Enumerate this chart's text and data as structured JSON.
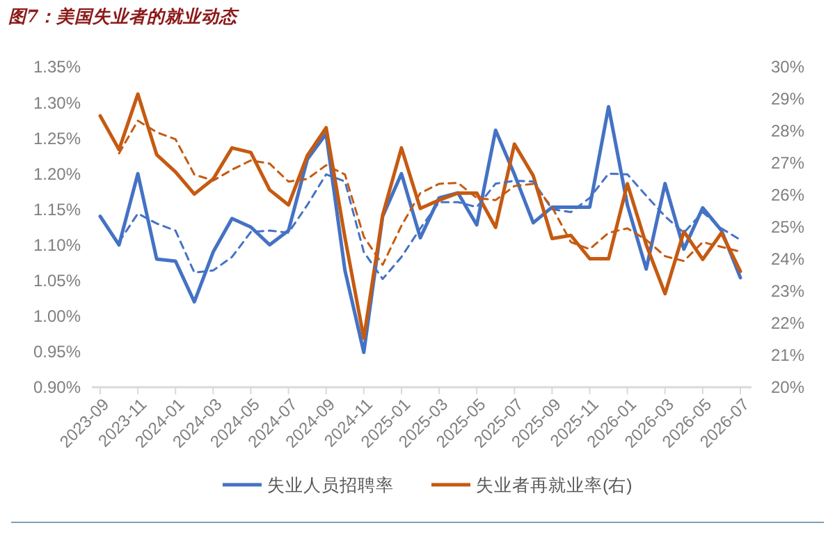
{
  "chart_data": {
    "type": "line",
    "title": "图7：美国失业者的就业动态",
    "categories": [
      "2023-09",
      null,
      "2023-11",
      null,
      "2024-01",
      null,
      "2024-03",
      null,
      "2024-05",
      null,
      "2024-07",
      null,
      "2024-09",
      null,
      "2024-11",
      null,
      "2025-01",
      null,
      "2025-03",
      null,
      "2025-05",
      null,
      "2025-07",
      null,
      "2025-09",
      null,
      "2025-11",
      null,
      "2026-01",
      null,
      "2026-03",
      null,
      "2026-05",
      null,
      "2026-07"
    ],
    "series": [
      {
        "name": "失业人员招聘率",
        "color": "#4472c4",
        "values": [
          1.14,
          1.1,
          1.2,
          1.08,
          1.077,
          1.02,
          1.09,
          1.137,
          1.125,
          1.1,
          1.12,
          1.22,
          1.256,
          1.064,
          0.949,
          1.14,
          1.2,
          1.11,
          1.166,
          1.173,
          1.128,
          1.261,
          1.199,
          1.131,
          1.153,
          1.153,
          1.153,
          1.294,
          1.156,
          1.066,
          1.186,
          1.094,
          1.152,
          1.12,
          1.054
        ]
      },
      {
        "name": "失业者再就业率(右)",
        "color": "#c55a11",
        "axis": "y2",
        "values": [
          28.47,
          27.42,
          29.15,
          27.26,
          26.72,
          26.03,
          26.5,
          27.47,
          27.33,
          26.16,
          25.69,
          27.23,
          28.1,
          24.67,
          21.53,
          25.37,
          27.47,
          25.58,
          25.84,
          26.06,
          26.06,
          24.99,
          27.59,
          26.6,
          24.64,
          24.74,
          24.01,
          24.01,
          26.35,
          24.45,
          22.92,
          24.86,
          23.99,
          24.82,
          23.62
        ]
      },
      {
        "color": "#4472c4",
        "line_style": "dashed",
        "values": [
          null,
          1.104,
          1.144,
          1.13,
          1.12,
          1.061,
          1.064,
          1.083,
          1.118,
          1.12,
          1.117,
          1.156,
          1.199,
          1.189,
          1.09,
          1.052,
          1.083,
          1.123,
          1.16,
          1.16,
          1.153,
          1.186,
          1.19,
          1.189,
          1.15,
          1.146,
          1.166,
          1.2,
          1.199,
          1.169,
          1.14,
          1.117,
          1.146,
          1.123,
          1.107
        ]
      },
      {
        "color": "#c55a11",
        "line_style": "dashed",
        "axis": "y2",
        "values": [
          null,
          27.3,
          28.32,
          27.96,
          27.74,
          26.64,
          26.45,
          26.79,
          27.08,
          26.98,
          26.42,
          26.5,
          26.93,
          26.64,
          24.7,
          23.82,
          25.04,
          26.06,
          26.35,
          26.38,
          25.91,
          25.84,
          26.28,
          26.35,
          25.62,
          24.53,
          24.31,
          24.82,
          24.96,
          24.6,
          24.09,
          23.94,
          24.53,
          24.38,
          24.23
        ]
      }
    ],
    "ylim": [
      0.9,
      1.35
    ],
    "yticks": [
      {
        "value": 0.9,
        "label": "0.90%"
      },
      {
        "value": 0.95,
        "label": "0.95%"
      },
      {
        "value": 1.0,
        "label": "1.00%"
      },
      {
        "value": 1.05,
        "label": "1.05%"
      },
      {
        "value": 1.1,
        "label": "1.10%"
      },
      {
        "value": 1.15,
        "label": "1.15%"
      },
      {
        "value": 1.2,
        "label": "1.20%"
      },
      {
        "value": 1.25,
        "label": "1.25%"
      },
      {
        "value": 1.3,
        "label": "1.30%"
      },
      {
        "value": 1.35,
        "label": "1.35%"
      }
    ],
    "y2lim": [
      20,
      30
    ],
    "y2ticks": [
      {
        "value": 20,
        "label": "20%"
      },
      {
        "value": 21,
        "label": "21%"
      },
      {
        "value": 22,
        "label": "22%"
      },
      {
        "value": 23,
        "label": "23%"
      },
      {
        "value": 24,
        "label": "24%"
      },
      {
        "value": 25,
        "label": "25%"
      },
      {
        "value": 26,
        "label": "26%"
      },
      {
        "value": 27,
        "label": "27%"
      },
      {
        "value": 28,
        "label": "28%"
      },
      {
        "value": 29,
        "label": "29%"
      },
      {
        "value": 30,
        "label": "30%"
      }
    ],
    "grid": false,
    "legend": "bottom",
    "line_style": "solid",
    "marker": "none"
  }
}
